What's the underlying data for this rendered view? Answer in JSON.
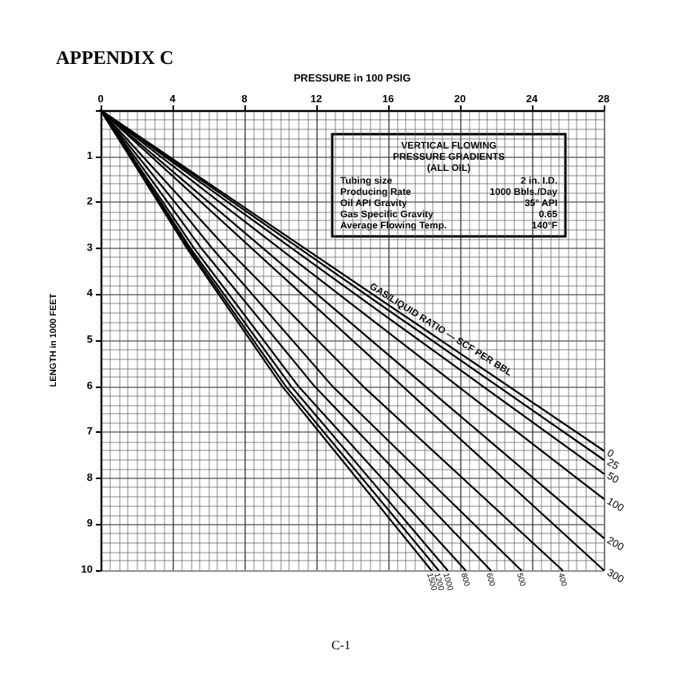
{
  "chart_data": {
    "type": "line",
    "title": "APPENDIX C",
    "xlabel": "PRESSURE in 100 PSIG",
    "ylabel": "LENGTH in 1000 FEET",
    "xlim": [
      0,
      28
    ],
    "xticks": [
      0,
      4,
      8,
      12,
      16,
      20,
      24,
      28
    ],
    "ylim": [
      10,
      0
    ],
    "yticks": [
      {
        "value": 0,
        "label": null
      },
      1,
      2,
      3,
      4,
      5,
      6,
      7,
      8,
      9,
      10
    ],
    "grid": true,
    "legend": false,
    "marker": "none",
    "line_style": "solid",
    "series": [
      {
        "name": "0",
        "color": "#000000",
        "x": [
          0,
          28
        ],
        "values": [
          0,
          7.4
        ]
      },
      {
        "name": "25",
        "color": "#000000",
        "x": [
          0,
          28
        ],
        "values": [
          0,
          7.6
        ]
      },
      {
        "name": "50",
        "color": "#000000",
        "x": [
          0,
          28
        ],
        "values": [
          0,
          7.9
        ]
      },
      {
        "name": "100",
        "color": "#000000",
        "x": [
          0,
          28
        ],
        "values": [
          0,
          8.45
        ]
      },
      {
        "name": "200",
        "color": "#000000",
        "x": [
          0,
          28
        ],
        "values": [
          0,
          9.3
        ]
      },
      {
        "name": "300",
        "color": "#000000",
        "x": [
          0,
          28
        ],
        "values": [
          0,
          10
        ]
      },
      {
        "name": "400",
        "color": "#000000",
        "x": [
          0,
          7,
          14.6,
          25.7
        ],
        "values": [
          0,
          3,
          6,
          10
        ]
      },
      {
        "name": "500",
        "color": "#000000",
        "x": [
          0,
          6.2,
          12.9,
          23.4
        ],
        "values": [
          0,
          3,
          6,
          10
        ]
      },
      {
        "name": "600",
        "color": "#000000",
        "x": [
          0,
          5.6,
          11.9,
          21.7
        ],
        "values": [
          0,
          3,
          6,
          10
        ]
      },
      {
        "name": "800",
        "color": "#000000",
        "x": [
          0,
          5.2,
          11,
          20.3
        ],
        "values": [
          0,
          3,
          6,
          10
        ]
      },
      {
        "name": "1000",
        "color": "#000000",
        "x": [
          0,
          5,
          10.6,
          19.3
        ],
        "values": [
          0,
          3,
          6,
          10
        ]
      },
      {
        "name": "1200",
        "color": "#000000",
        "x": [
          0,
          4.9,
          10.3,
          18.8
        ],
        "values": [
          0,
          3,
          6,
          10
        ]
      },
      {
        "name": "1500",
        "color": "#000000",
        "x": [
          0,
          4.8,
          10.1,
          18.4
        ],
        "values": [
          0,
          3,
          6,
          10
        ]
      }
    ],
    "annotations": [
      "VERTICAL FLOWING",
      "PRESSURE GRADIENTS",
      "(ALL OIL)",
      "Tubing size",
      "2 in. I.D.",
      "Producing Rate",
      "1000 Bbls./Day",
      "Oil API Gravity",
      "35° API",
      "Gas Specific Gravity",
      "0.65",
      "Average Flowing Temp.",
      "140°F",
      "GAS/LIQUID RATIO — SCF PER BBL",
      "C-1"
    ]
  }
}
